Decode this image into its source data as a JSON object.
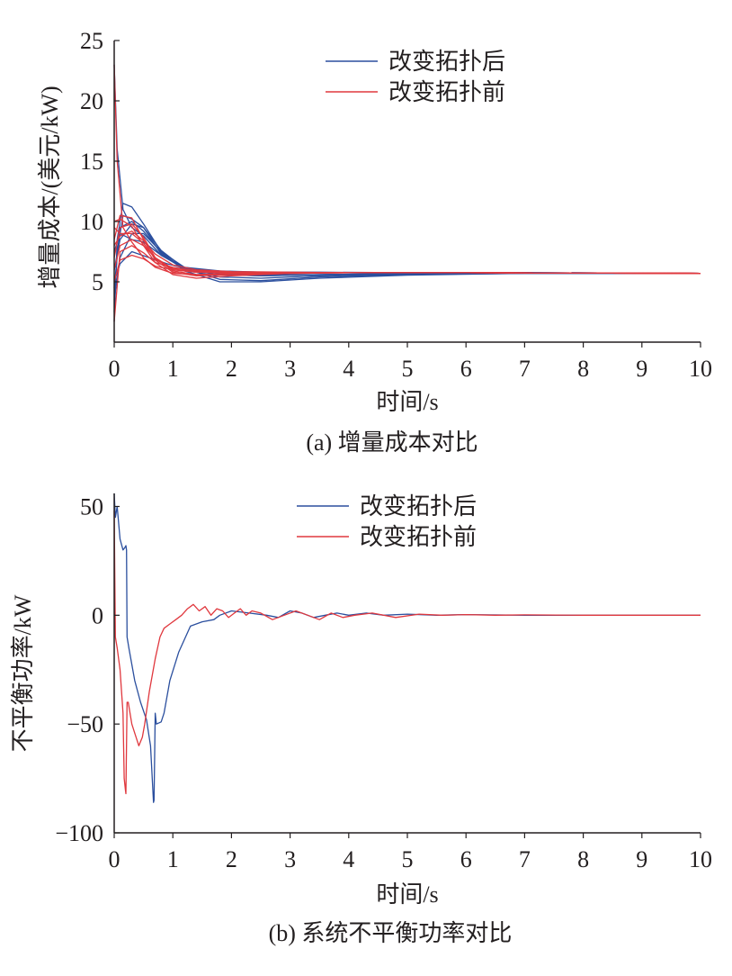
{
  "figure": {
    "caption_a": "(a) 增量成本对比",
    "caption_b": "(b) 系统不平衡功率对比"
  },
  "colors": {
    "after": "#2b4f9e",
    "before": "#e0383e",
    "axis": "#231f20"
  },
  "chart_data": [
    {
      "type": "line",
      "panel": "a",
      "xlabel": "时间/s",
      "ylabel": "增量成本/(美元/kW)",
      "xlim": [
        0,
        10
      ],
      "ylim": [
        0,
        25
      ],
      "xticks": [
        "0",
        "1",
        "2",
        "3",
        "4",
        "5",
        "6",
        "7",
        "8",
        "9",
        "10"
      ],
      "yticks": [
        "5",
        "10",
        "15",
        "20",
        "25"
      ],
      "ytick_values": [
        5,
        10,
        15,
        20,
        25
      ],
      "legend": [
        "改变拓扑后",
        "改变拓扑前"
      ],
      "legend_position": "top-right",
      "series": [
        {
          "name": "改变拓扑后",
          "group": "after",
          "x": [
            0,
            0.05,
            0.15,
            0.3,
            0.5,
            0.8,
            1.2,
            1.8,
            2.5,
            3.5,
            5,
            7,
            10
          ],
          "y": [
            1.7,
            8.5,
            11.5,
            11.2,
            9.8,
            7.5,
            6.2,
            5.9,
            5.8,
            5.8,
            5.75,
            5.75,
            5.7
          ]
        },
        {
          "name": "",
          "group": "after",
          "x": [
            0,
            0.05,
            0.15,
            0.3,
            0.5,
            0.8,
            1.2,
            1.8,
            2.5,
            3.5,
            5,
            7,
            10
          ],
          "y": [
            23,
            16,
            11,
            9.5,
            8.8,
            7.2,
            6.1,
            5.8,
            5.7,
            5.75,
            5.75,
            5.75,
            5.7
          ]
        },
        {
          "name": "",
          "group": "after",
          "x": [
            0,
            0.05,
            0.15,
            0.3,
            0.5,
            0.8,
            1.2,
            1.8,
            2.5,
            3.5,
            5,
            7,
            10
          ],
          "y": [
            2.5,
            7.5,
            10.5,
            10.2,
            9.5,
            7.3,
            6.0,
            5.6,
            5.5,
            5.6,
            5.7,
            5.75,
            5.7
          ]
        },
        {
          "name": "",
          "group": "after",
          "x": [
            0,
            0.1,
            0.3,
            0.5,
            0.8,
            1.2,
            1.8,
            2.5,
            3.5,
            5,
            7,
            10
          ],
          "y": [
            4.5,
            9.5,
            10,
            9.2,
            7.4,
            6.0,
            5.4,
            5.3,
            5.5,
            5.65,
            5.7,
            5.7
          ]
        },
        {
          "name": "",
          "group": "after",
          "x": [
            0,
            0.1,
            0.3,
            0.5,
            0.8,
            1.2,
            1.8,
            2.5,
            3.5,
            5,
            7,
            10
          ],
          "y": [
            6,
            8.5,
            9.8,
            9.5,
            7.6,
            6.1,
            5.2,
            5.1,
            5.4,
            5.6,
            5.7,
            5.7
          ]
        },
        {
          "name": "",
          "group": "after",
          "x": [
            0,
            0.1,
            0.3,
            0.5,
            0.8,
            1.2,
            1.8,
            2.5,
            3.5,
            5,
            7,
            10
          ],
          "y": [
            3.5,
            7,
            9,
            9.0,
            7.5,
            5.9,
            5.0,
            5.0,
            5.3,
            5.55,
            5.7,
            5.7
          ]
        },
        {
          "name": "",
          "group": "after",
          "x": [
            0,
            0.1,
            0.3,
            0.5,
            0.8,
            1.2,
            1.8,
            2.5,
            3.5,
            5,
            7,
            10
          ],
          "y": [
            7.5,
            9,
            8.5,
            8.3,
            7.2,
            6.2,
            5.7,
            5.6,
            5.6,
            5.7,
            5.75,
            5.7
          ]
        },
        {
          "name": "",
          "group": "after",
          "x": [
            0,
            0.1,
            0.3,
            0.6,
            0.9,
            1.3,
            1.8,
            2.5,
            3.5,
            5,
            7,
            10
          ],
          "y": [
            5,
            6.5,
            7.5,
            7.0,
            6.5,
            6.0,
            5.6,
            5.5,
            5.6,
            5.7,
            5.75,
            5.7
          ]
        },
        {
          "name": "改变拓扑前",
          "group": "before",
          "x": [
            0,
            0.05,
            0.15,
            0.3,
            0.5,
            0.7,
            1.0,
            1.4,
            2.0,
            3.0,
            4.0,
            6.0,
            10
          ],
          "y": [
            23,
            15,
            9.5,
            8.3,
            7.0,
            6.2,
            5.7,
            5.6,
            5.7,
            5.75,
            5.75,
            5.75,
            5.7
          ]
        },
        {
          "name": "",
          "group": "before",
          "x": [
            0,
            0.1,
            0.3,
            0.5,
            0.7,
            1.0,
            1.4,
            2.0,
            3.0,
            4.0,
            6.0,
            10
          ],
          "y": [
            8.5,
            10.5,
            10.3,
            8.5,
            6.8,
            5.8,
            5.5,
            5.6,
            5.7,
            5.75,
            5.75,
            5.7
          ]
        },
        {
          "name": "",
          "group": "before",
          "x": [
            0,
            0.1,
            0.3,
            0.5,
            0.7,
            1.0,
            1.4,
            2.0,
            3.0,
            4.0,
            6.0,
            10
          ],
          "y": [
            7,
            9.5,
            9.8,
            8.7,
            7.0,
            5.9,
            5.6,
            5.7,
            5.75,
            5.75,
            5.75,
            5.7
          ]
        },
        {
          "name": "",
          "group": "before",
          "x": [
            0,
            0.1,
            0.3,
            0.5,
            0.7,
            1.0,
            1.4,
            2.0,
            3.0,
            4.0,
            6.0,
            10
          ],
          "y": [
            9.5,
            9.0,
            9.0,
            8.2,
            6.9,
            6.0,
            5.8,
            5.8,
            5.75,
            5.75,
            5.75,
            5.7
          ]
        },
        {
          "name": "",
          "group": "before",
          "x": [
            0,
            0.1,
            0.3,
            0.5,
            0.7,
            1.0,
            1.4,
            2.0,
            3.0,
            4.0,
            6.0,
            10
          ],
          "y": [
            6,
            8.0,
            8.5,
            8.0,
            7.0,
            6.1,
            5.9,
            5.8,
            5.75,
            5.75,
            5.75,
            5.7
          ]
        },
        {
          "name": "",
          "group": "before",
          "x": [
            0,
            0.1,
            0.3,
            0.5,
            0.7,
            1.0,
            1.4,
            2.0,
            3.0,
            4.0,
            6.0,
            10
          ],
          "y": [
            1.7,
            7.5,
            8.0,
            7.4,
            6.6,
            6.2,
            5.9,
            5.8,
            5.75,
            5.75,
            5.75,
            5.7
          ]
        },
        {
          "name": "",
          "group": "before",
          "x": [
            0,
            0.1,
            0.3,
            0.5,
            0.7,
            1.0,
            1.4,
            2.0,
            3.0,
            4.0,
            6.0,
            10
          ],
          "y": [
            5,
            6.8,
            7.2,
            6.9,
            6.3,
            6.0,
            5.8,
            5.75,
            5.75,
            5.75,
            5.75,
            5.7
          ]
        },
        {
          "name": "",
          "group": "before",
          "x": [
            0,
            0.1,
            0.3,
            0.5,
            0.7,
            1.0,
            1.4,
            2.0,
            3.0,
            4.0,
            6.0,
            10
          ],
          "y": [
            8,
            8.8,
            9.2,
            8.4,
            7.3,
            6.4,
            6.0,
            5.85,
            5.8,
            5.75,
            5.75,
            5.7
          ]
        },
        {
          "name": "",
          "group": "before",
          "x": [
            0,
            0.1,
            0.3,
            0.5,
            0.7,
            1.0,
            1.4,
            2.0,
            3.0,
            4.0,
            6.0,
            10
          ],
          "y": [
            10,
            10.2,
            9.6,
            8.0,
            6.6,
            5.6,
            5.3,
            5.5,
            5.7,
            5.75,
            5.75,
            5.7
          ]
        }
      ]
    },
    {
      "type": "line",
      "panel": "b",
      "xlabel": "时间/s",
      "ylabel": "不平衡功率/kW",
      "xlim": [
        0,
        10
      ],
      "ylim": [
        -100,
        56
      ],
      "xticks": [
        "0",
        "1",
        "2",
        "3",
        "4",
        "5",
        "6",
        "7",
        "8",
        "9",
        "10"
      ],
      "yticks": [
        "50",
        "0",
        "−50",
        "−100"
      ],
      "ytick_values": [
        50,
        0,
        -50,
        -100
      ],
      "legend": [
        "改变拓扑后",
        "改变拓扑前"
      ],
      "legend_position": "top-right",
      "series": [
        {
          "name": "改变拓扑后",
          "group": "after",
          "x": [
            0,
            0.02,
            0.05,
            0.1,
            0.15,
            0.18,
            0.2,
            0.21,
            0.22,
            0.25,
            0.35,
            0.45,
            0.55,
            0.62,
            0.67,
            0.68,
            0.7,
            0.72,
            0.8,
            0.85,
            0.95,
            1.1,
            1.3,
            1.5,
            1.7,
            1.8,
            2.0,
            2.3,
            2.6,
            2.8,
            3.0,
            3.2,
            3.4,
            3.6,
            3.8,
            4.0,
            4.3,
            4.6,
            5.0,
            5.5,
            6.0,
            7.0,
            8.0,
            10.0
          ],
          "y": [
            56,
            45,
            50,
            35,
            30,
            31,
            32,
            30,
            -10,
            -15,
            -30,
            -40,
            -48,
            -60,
            -86,
            -85,
            -45,
            -50,
            -49,
            -45,
            -30,
            -17,
            -5,
            -3,
            -2,
            0,
            2,
            1,
            0,
            -1,
            2,
            1,
            -1,
            0,
            1,
            0,
            1,
            0,
            0.5,
            0,
            0.3,
            0,
            0,
            0
          ]
        },
        {
          "name": "改变拓扑前",
          "group": "before",
          "x": [
            0,
            0.02,
            0.05,
            0.1,
            0.15,
            0.17,
            0.19,
            0.2,
            0.22,
            0.24,
            0.3,
            0.36,
            0.42,
            0.48,
            0.52,
            0.6,
            0.7,
            0.78,
            0.85,
            0.95,
            1.05,
            1.15,
            1.25,
            1.35,
            1.45,
            1.55,
            1.65,
            1.75,
            1.85,
            1.95,
            2.05,
            2.15,
            2.25,
            2.35,
            2.5,
            2.7,
            2.9,
            3.1,
            3.3,
            3.5,
            3.7,
            3.9,
            4.1,
            4.4,
            4.8,
            5.2,
            5.6,
            6.0,
            6.5,
            7.0,
            8.0,
            10.0
          ],
          "y": [
            48,
            -10,
            -15,
            -25,
            -45,
            -75,
            -80,
            -82,
            -40,
            -40,
            -50,
            -55,
            -60,
            -56,
            -50,
            -35,
            -20,
            -10,
            -6,
            -4,
            -2,
            0,
            3,
            5,
            2,
            4,
            0,
            3,
            2,
            -1,
            1,
            3,
            0,
            2,
            1,
            -2,
            0,
            2,
            0,
            -2,
            1,
            -1,
            0,
            1,
            -1,
            0.5,
            0,
            0.3,
            0,
            0.2,
            0,
            0
          ]
        }
      ]
    }
  ]
}
